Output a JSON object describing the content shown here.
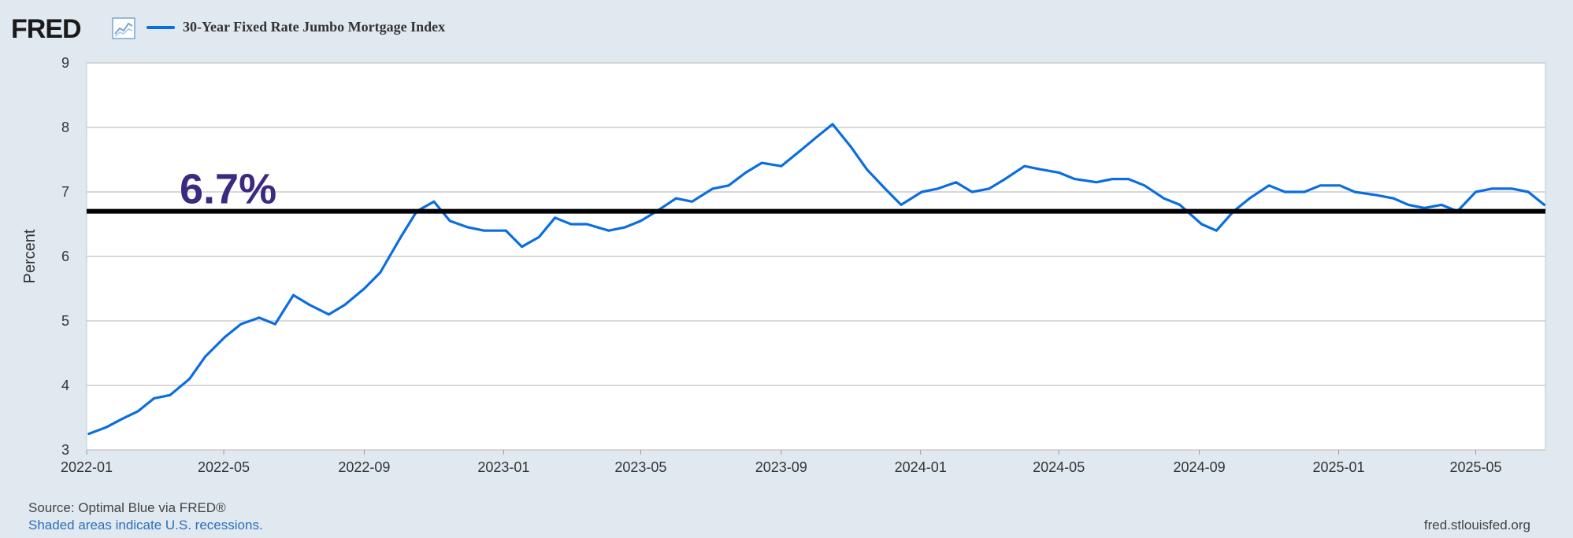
{
  "header": {
    "logo_text": "FRED",
    "logo_icon": "line-chart-icon",
    "series_label": "30-Year Fixed Rate Jumbo Mortgage Index"
  },
  "footer": {
    "source": "Source: Optimal Blue via FRED®",
    "note": "Shaded areas indicate U.S. recessions.",
    "url": "fred.stlouisfed.org"
  },
  "colors": {
    "background": "#e1e9f0",
    "plot_background": "#ffffff",
    "series": "#0b6ee0",
    "reference_line": "#000000",
    "annotation": "#3b2a80",
    "grid": "#cccccc"
  },
  "chart_data": {
    "type": "line",
    "title": "",
    "xlabel": "",
    "ylabel": "Percent",
    "ylim": [
      3,
      9
    ],
    "xlim": [
      "2022-01-01",
      "2025-07-01"
    ],
    "yticks": [
      3,
      4,
      5,
      6,
      7,
      8,
      9
    ],
    "xticks": [
      "2022-01",
      "2022-05",
      "2022-09",
      "2023-01",
      "2023-05",
      "2023-09",
      "2024-01",
      "2024-05",
      "2024-09",
      "2025-01",
      "2025-05"
    ],
    "grid": "horizontal",
    "legend": "top-left",
    "series": [
      {
        "name": "30-Year Fixed Rate Jumbo Mortgage Index",
        "x": [
          "2022-01-03",
          "2022-01-18",
          "2022-02-01",
          "2022-02-15",
          "2022-03-01",
          "2022-03-15",
          "2022-04-01",
          "2022-04-15",
          "2022-05-02",
          "2022-05-16",
          "2022-06-01",
          "2022-06-15",
          "2022-07-01",
          "2022-07-15",
          "2022-08-01",
          "2022-08-15",
          "2022-09-01",
          "2022-09-15",
          "2022-10-03",
          "2022-10-17",
          "2022-11-01",
          "2022-11-15",
          "2022-12-01",
          "2022-12-15",
          "2023-01-03",
          "2023-01-17",
          "2023-02-01",
          "2023-02-15",
          "2023-03-01",
          "2023-03-15",
          "2023-04-03",
          "2023-04-17",
          "2023-05-01",
          "2023-05-15",
          "2023-06-01",
          "2023-06-15",
          "2023-07-03",
          "2023-07-17",
          "2023-08-01",
          "2023-08-15",
          "2023-09-01",
          "2023-09-15",
          "2023-10-02",
          "2023-10-16",
          "2023-11-01",
          "2023-11-15",
          "2023-12-01",
          "2023-12-15",
          "2024-01-02",
          "2024-01-16",
          "2024-02-01",
          "2024-02-15",
          "2024-03-01",
          "2024-03-15",
          "2024-04-01",
          "2024-04-15",
          "2024-05-01",
          "2024-05-15",
          "2024-06-03",
          "2024-06-17",
          "2024-07-01",
          "2024-07-15",
          "2024-08-01",
          "2024-08-15",
          "2024-09-03",
          "2024-09-16",
          "2024-10-01",
          "2024-10-15",
          "2024-11-01",
          "2024-11-15",
          "2024-12-02",
          "2024-12-16",
          "2025-01-02",
          "2025-01-15",
          "2025-02-03",
          "2025-02-18",
          "2025-03-03",
          "2025-03-17",
          "2025-04-01",
          "2025-04-15",
          "2025-05-01",
          "2025-05-15",
          "2025-06-02",
          "2025-06-16",
          "2025-06-30"
        ],
        "values": [
          3.25,
          3.35,
          3.48,
          3.6,
          3.8,
          3.85,
          4.1,
          4.45,
          4.75,
          4.95,
          5.05,
          4.95,
          5.4,
          5.25,
          5.1,
          5.25,
          5.5,
          5.75,
          6.3,
          6.7,
          6.85,
          6.55,
          6.45,
          6.4,
          6.4,
          6.15,
          6.3,
          6.6,
          6.5,
          6.5,
          6.4,
          6.45,
          6.55,
          6.7,
          6.9,
          6.85,
          7.05,
          7.1,
          7.3,
          7.45,
          7.4,
          7.6,
          7.85,
          8.05,
          7.7,
          7.35,
          7.05,
          6.8,
          7.0,
          7.05,
          7.15,
          7.0,
          7.05,
          7.2,
          7.4,
          7.35,
          7.3,
          7.2,
          7.15,
          7.2,
          7.2,
          7.1,
          6.9,
          6.8,
          6.5,
          6.4,
          6.7,
          6.9,
          7.1,
          7.0,
          7.0,
          7.1,
          7.1,
          7.0,
          6.95,
          6.9,
          6.8,
          6.75,
          6.8,
          6.7,
          7.0,
          7.05,
          7.05,
          7.0,
          6.8
        ]
      }
    ],
    "reference_lines": [
      {
        "y": 6.7,
        "label": "6.7%"
      }
    ]
  }
}
